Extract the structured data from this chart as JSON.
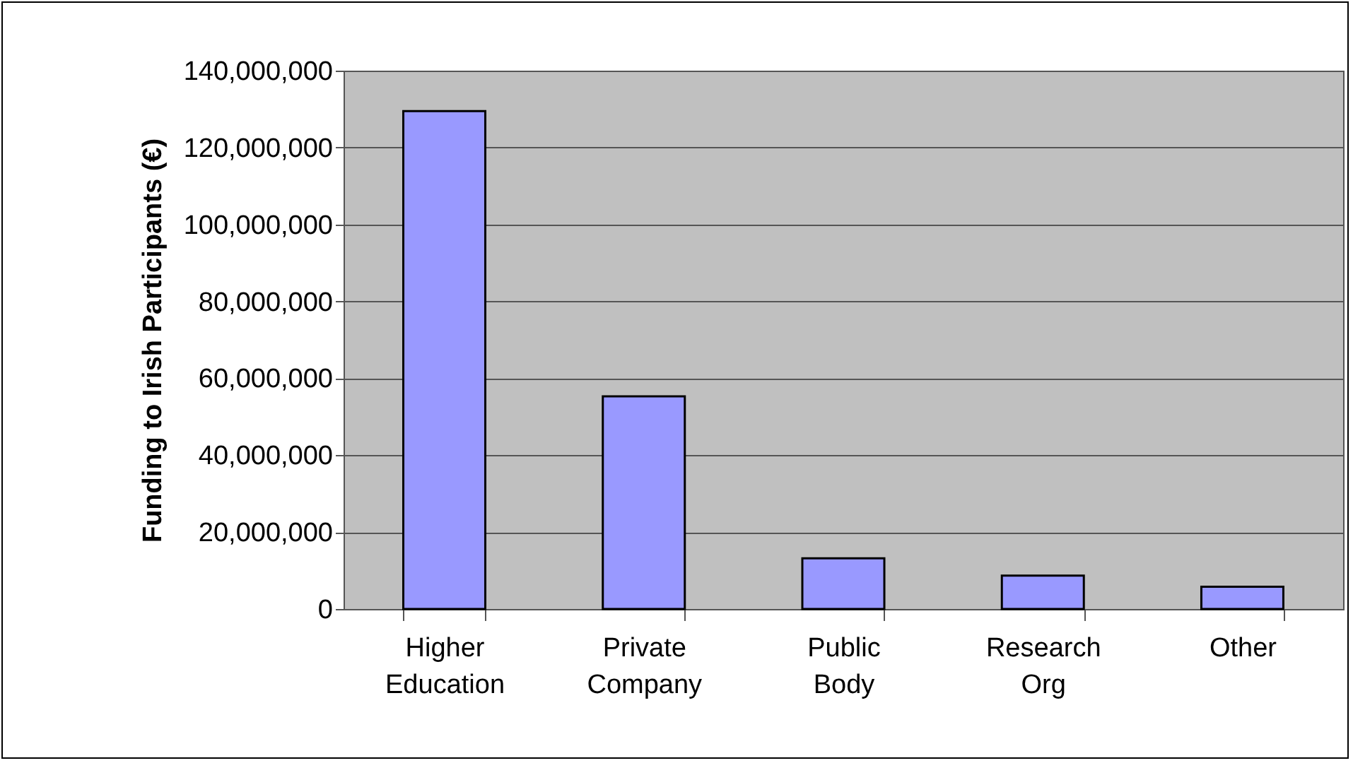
{
  "chart_data": {
    "type": "bar",
    "ylabel": "Funding to Irish Participants (€)",
    "categories": [
      "Higher Education",
      "Private Company",
      "Public Body",
      "Research Org",
      "Other"
    ],
    "values": [
      129500000,
      55300000,
      13200000,
      8700000,
      5800000
    ],
    "color": "#9999ff",
    "ylim": [
      0,
      140000000
    ],
    "yticks": [
      0,
      {
        "value": 20000000,
        "label": "20,000,000"
      },
      {
        "value": 40000000,
        "label": "40,000,000"
      },
      {
        "value": 60000000,
        "label": "60,000,000"
      },
      {
        "value": 80000000,
        "label": "80,000,000"
      },
      {
        "value": 100000000,
        "label": "100,000,000"
      },
      {
        "value": 120000000,
        "label": "120,000,000"
      },
      {
        "value": 140000000,
        "label": "140,000,000"
      }
    ],
    "grid": "y"
  }
}
